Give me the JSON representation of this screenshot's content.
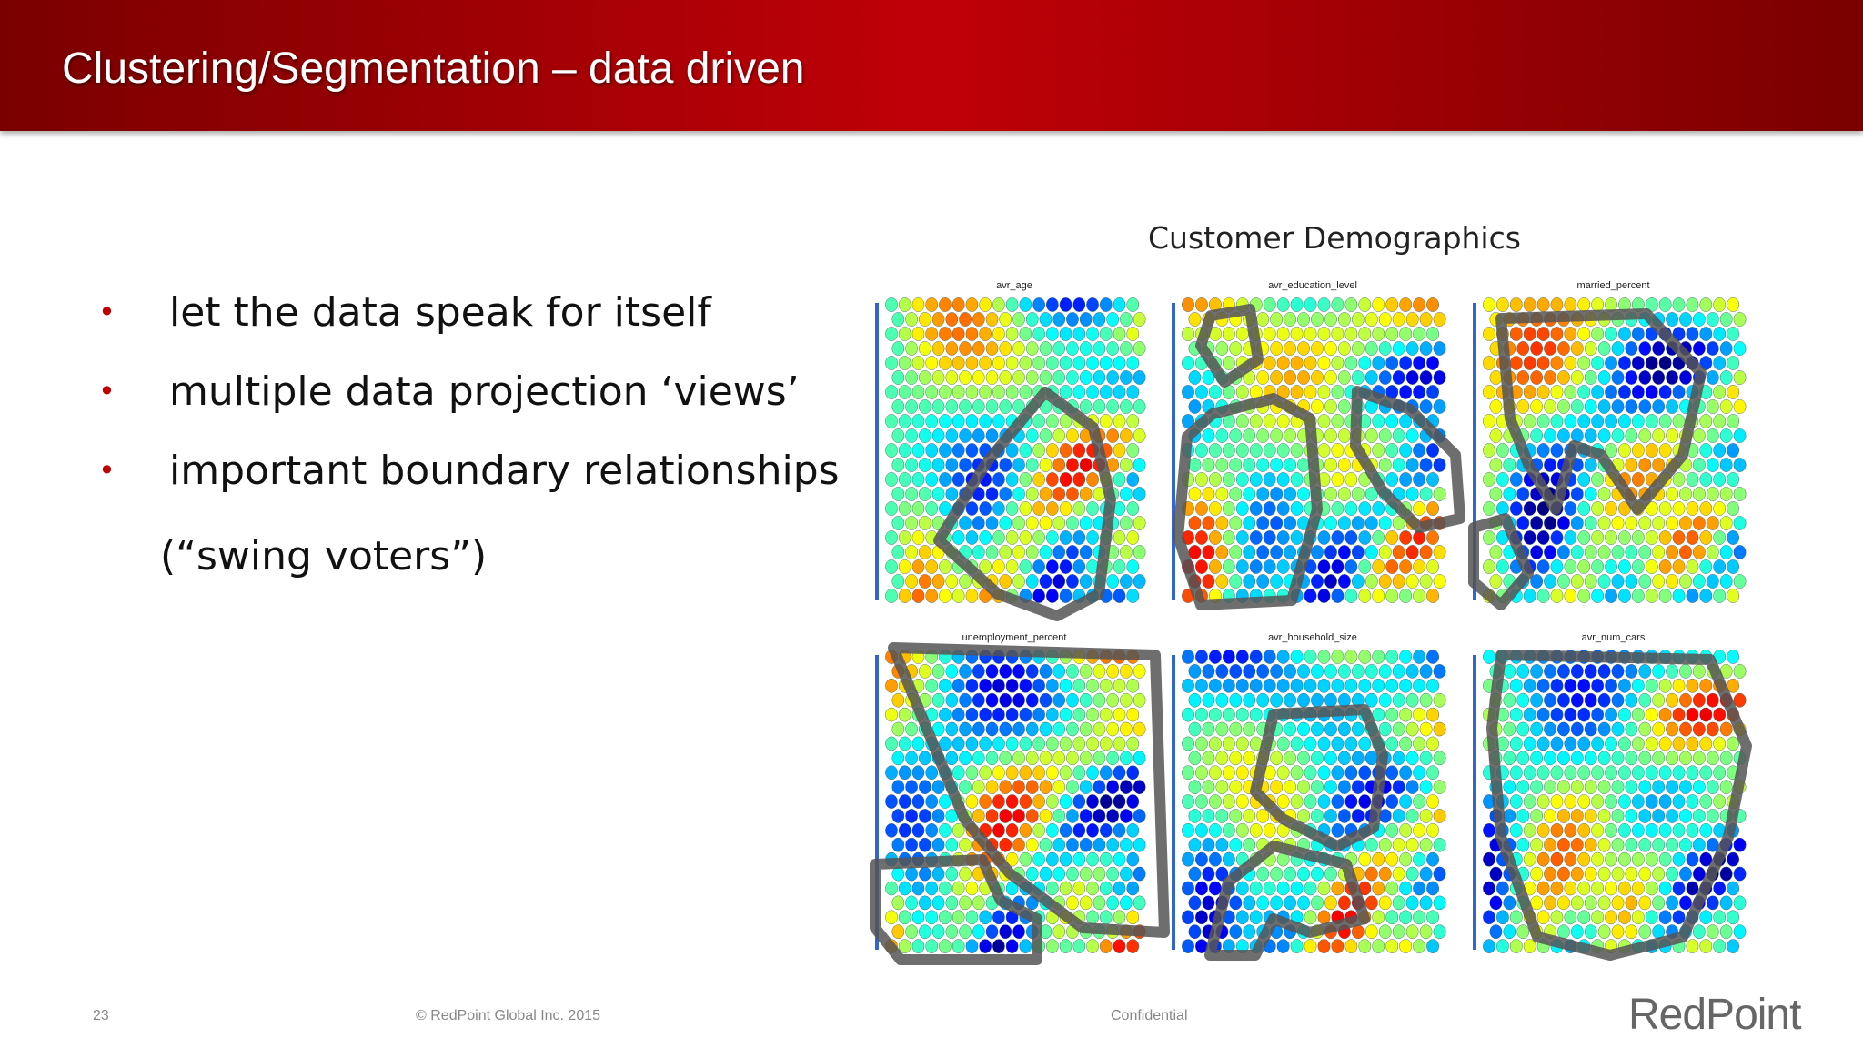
{
  "header": {
    "title": "Clustering/Segmentation – data driven"
  },
  "bullets": [
    "let the data speak for itself",
    "multiple data projection ‘views’",
    "important boundary relationships"
  ],
  "bullet_note": "(“swing voters”)",
  "figure": {
    "title": "Customer Demographics",
    "panels": [
      "avr_age",
      "avr_education_level",
      "married_percent",
      "unemployment_percent",
      "avr_household_size",
      "avr_num_cars"
    ]
  },
  "footer": {
    "page_number": "23",
    "copyright": "© RedPoint Global Inc. 2015",
    "confidential": "Confidential",
    "logo": "RedPoint"
  }
}
